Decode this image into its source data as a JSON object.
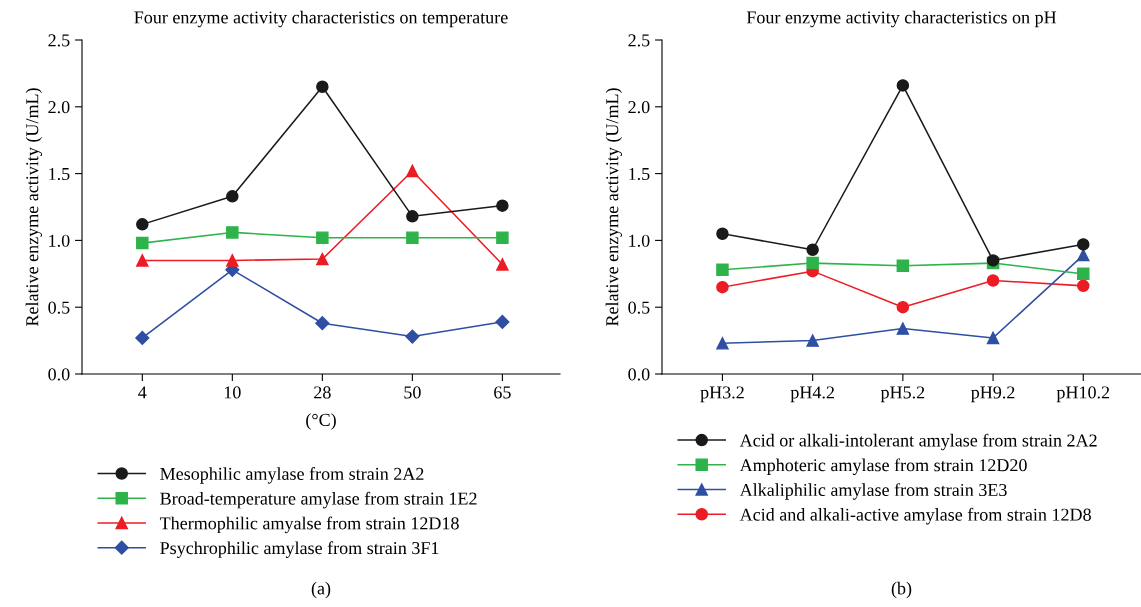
{
  "chart_data": [
    {
      "type": "line",
      "title": "Four enzyme activity characteristics on temperature",
      "xlabel": "(°C)",
      "ylabel": "Relative enzyme activity (U/mL)",
      "categories": [
        "4",
        "10",
        "28",
        "50",
        "65"
      ],
      "ylim": [
        0,
        2.5
      ],
      "yticks": [
        {
          "value": 0,
          "label": "0.0"
        },
        0.5,
        {
          "value": 1,
          "label": "1.0"
        },
        1.5,
        {
          "value": 2,
          "label": "2.0"
        },
        2.5
      ],
      "grid": false,
      "legend": "bottom",
      "line_style": "solid",
      "annotations": [
        "(a)"
      ],
      "series": [
        {
          "name": "Mesophilic amylase from strain 2A2",
          "color": "#1a1a1a",
          "marker": "circle",
          "values": [
            1.12,
            1.33,
            2.15,
            1.18,
            1.26
          ]
        },
        {
          "name": "Broad-temperature amylase from strain 1E2",
          "color": "#2db34a",
          "marker": "square",
          "values": [
            0.98,
            1.06,
            1.02,
            1.02,
            1.02
          ]
        },
        {
          "name": "Thermophilic amyalse from strain 12D18",
          "color": "#ed1c24",
          "marker": "triangle",
          "values": [
            0.85,
            0.85,
            0.86,
            1.52,
            0.82
          ]
        },
        {
          "name": "Psychrophilic amylase from strain 3F1",
          "color": "#2e4fa3",
          "marker": "diamond",
          "values": [
            0.27,
            0.78,
            0.38,
            0.28,
            0.39
          ]
        }
      ]
    },
    {
      "type": "line",
      "title": "Four enzyme activity characteristics on pH",
      "ylabel": "Relative enzyme activity (U/mL)",
      "categories": [
        "pH3.2",
        "pH4.2",
        "pH5.2",
        "pH9.2",
        "pH10.2"
      ],
      "ylim": [
        0,
        2.5
      ],
      "yticks": [
        {
          "value": 0,
          "label": "0.0"
        },
        0.5,
        {
          "value": 1,
          "label": "1.0"
        },
        1.5,
        {
          "value": 2,
          "label": "2.0"
        },
        2.5
      ],
      "grid": false,
      "legend": "bottom",
      "line_style": "solid",
      "annotations": [
        "(b)"
      ],
      "series": [
        {
          "name": "Acid or alkali-intolerant amylase from strain 2A2",
          "color": "#1a1a1a",
          "marker": "circle",
          "values": [
            1.05,
            0.93,
            2.16,
            0.85,
            0.97
          ]
        },
        {
          "name": "Amphoteric amylase from strain 12D20",
          "color": "#2db34a",
          "marker": "square",
          "values": [
            0.78,
            0.83,
            0.81,
            0.83,
            0.75
          ]
        },
        {
          "name": "Alkaliphilic amylase from strain 3E3",
          "color": "#2e4fa3",
          "marker": "triangle",
          "values": [
            0.23,
            0.25,
            0.34,
            0.27,
            0.89
          ]
        },
        {
          "name": "Acid and alkali-active amylase from strain 12D8",
          "color": "#ed1c24",
          "marker": "circle",
          "values": [
            0.65,
            0.77,
            0.5,
            0.7,
            0.66
          ]
        }
      ]
    }
  ]
}
